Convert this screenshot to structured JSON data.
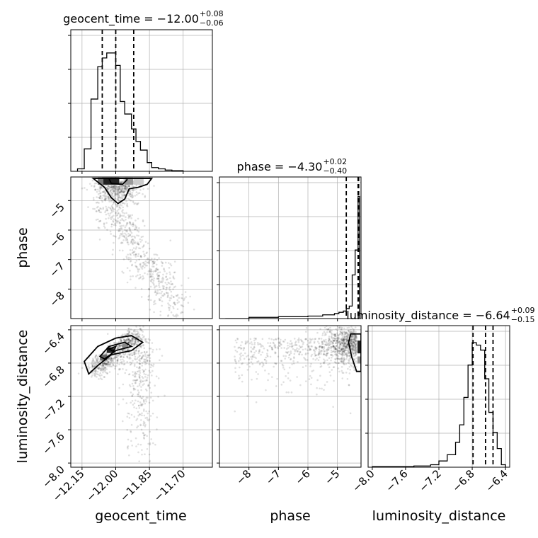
{
  "chart_data": {
    "type": "corner",
    "parameters": [
      {
        "name": "geocent_time",
        "range": [
          -12.2,
          -11.57
        ],
        "ticks": [
          -12.15,
          -12.0,
          -11.85,
          -11.7
        ],
        "tick_labels": [
          "−12.15",
          "−12.00",
          "−11.85",
          "−11.70"
        ]
      },
      {
        "name": "phase",
        "range": [
          -9.0,
          -4.2
        ],
        "ticks": [
          -8,
          -7,
          -6,
          -5
        ],
        "tick_labels": [
          "−8",
          "−7",
          "−6",
          "−5"
        ]
      },
      {
        "name": "luminosity_distance",
        "range": [
          -8.05,
          -6.35
        ],
        "ticks": [
          -8.0,
          -7.6,
          -7.2,
          -6.8,
          -6.4
        ],
        "tick_labels": [
          "−8.0",
          "−7.6",
          "−7.2",
          "−6.8",
          "−6.4"
        ]
      }
    ],
    "titles": [
      {
        "prefix": "geocent_time = −12.00",
        "sup": "+0.08",
        "sub": "−0.06"
      },
      {
        "prefix": "phase = −4.30",
        "sup": "+0.02",
        "sub": "−0.40"
      },
      {
        "prefix": "luminosity_distance = −6.64",
        "sup": "+0.09",
        "sub": "−0.15"
      }
    ],
    "quantile_lines": [
      [
        -12.06,
        -12.0,
        -11.92
      ],
      [
        -4.7,
        -4.3,
        -4.28
      ],
      [
        -6.79,
        -6.64,
        -6.55
      ]
    ],
    "histograms": [
      {
        "bins": [
          -12.17,
          -12.14,
          -12.11,
          -12.08,
          -12.06,
          -12.04,
          -12.02,
          -12.0,
          -11.98,
          -11.96,
          -11.93,
          -11.91,
          -11.89,
          -11.86,
          -11.84,
          -11.81,
          -11.78,
          -11.75,
          -11.7
        ],
        "counts": [
          0.02,
          0.18,
          0.58,
          0.84,
          0.91,
          0.95,
          0.95,
          0.85,
          0.56,
          0.46,
          0.34,
          0.24,
          0.17,
          0.07,
          0.03,
          0.02,
          0.01,
          0.005
        ]
      },
      {
        "bins": [
          -8.8,
          -8.0,
          -7.0,
          -6.0,
          -5.5,
          -5.1,
          -4.95,
          -4.8,
          -4.7,
          -4.6,
          -4.5,
          -4.4,
          -4.3,
          -4.25
        ],
        "counts": [
          0.0,
          0.01,
          0.015,
          0.02,
          0.03,
          0.04,
          0.05,
          0.06,
          0.08,
          0.1,
          0.35,
          0.55,
          0.98
        ]
      },
      {
        "bins": [
          -8.0,
          -7.5,
          -7.3,
          -7.2,
          -7.1,
          -7.0,
          -6.95,
          -6.9,
          -6.85,
          -6.8,
          -6.75,
          -6.7,
          -6.65,
          -6.6,
          -6.55,
          -6.5,
          -6.45,
          -6.4
        ],
        "counts": [
          0.005,
          0.01,
          0.02,
          0.05,
          0.1,
          0.2,
          0.34,
          0.56,
          0.82,
          1.0,
          0.98,
          0.94,
          0.71,
          0.44,
          0.28,
          0.15,
          0.02
        ]
      }
    ],
    "scatter_clouds": {
      "time_phase": {
        "center": [
          -11.98,
          -4.8
        ],
        "density": "banana, concentrated near phase −4.3, tail toward phase −8.5 at time −11.7"
      },
      "time_dist": {
        "center": [
          -12.0,
          -6.6
        ],
        "density": "arc from (−12.1,−6.9) to (−11.9,−6.45), tail down to −8.0"
      },
      "phase_dist": {
        "center": [
          -4.4,
          -6.6
        ],
        "density": "concentrated at phase −4.3, spread left to phase −8.5"
      }
    },
    "grid": true
  }
}
